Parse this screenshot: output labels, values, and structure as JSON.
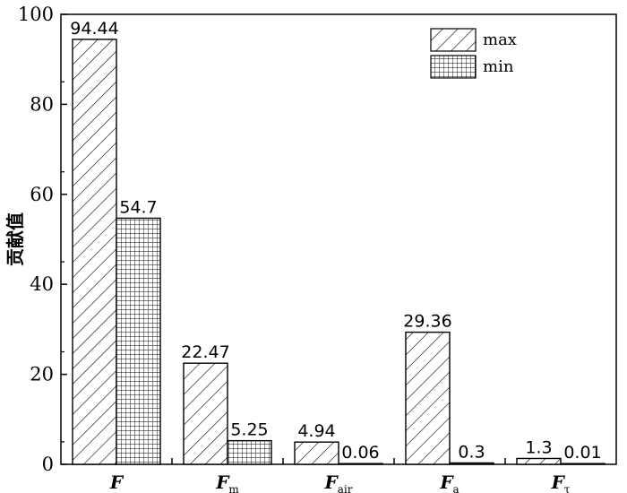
{
  "chart_data": {
    "type": "bar",
    "categories": [
      {
        "base": "F",
        "sub": ""
      },
      {
        "base": "F",
        "sub": "m"
      },
      {
        "base": "F",
        "sub": "air"
      },
      {
        "base": "F",
        "sub": "a"
      },
      {
        "base": "F",
        "sub": "τ"
      }
    ],
    "series": [
      {
        "name": "max",
        "pattern": "diagonal-hatch",
        "values": [
          94.44,
          22.47,
          4.94,
          29.36,
          1.3
        ],
        "labels": [
          "94.44",
          "22.47",
          "4.94",
          "29.36",
          "1.3"
        ]
      },
      {
        "name": "min",
        "pattern": "grid-hatch",
        "values": [
          54.7,
          5.25,
          0.06,
          0.3,
          0.01
        ],
        "labels": [
          "54.7",
          "5.25",
          "0.06",
          "0.3",
          "0.01"
        ]
      }
    ],
    "xlabel": "",
    "ylabel": "贡献值",
    "ylim": [
      0,
      100
    ],
    "yticks": [
      0,
      20,
      40,
      60,
      80,
      100
    ],
    "legend_position": "top-right",
    "grid": false
  }
}
